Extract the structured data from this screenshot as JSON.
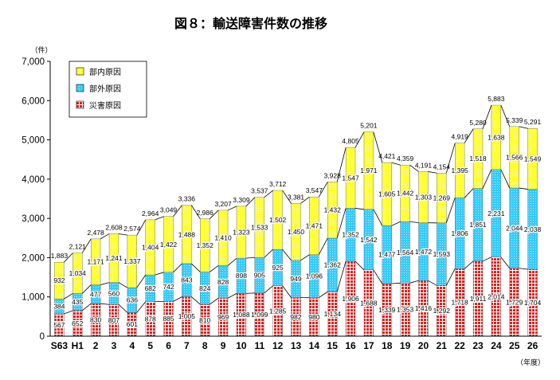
{
  "chart_data": {
    "type": "bar",
    "stacked": true,
    "title": "図８：輸送障害件数の推移",
    "ylabel": "（件）",
    "xlabel": "（年度）",
    "ylim": [
      0,
      7000
    ],
    "yticks": [
      "0",
      "1,000",
      "2,000",
      "3,000",
      "4,000",
      "5,000",
      "6,000",
      "7,000"
    ],
    "categories": [
      "S63",
      "H1",
      "2",
      "3",
      "4",
      "5",
      "6",
      "7",
      "8",
      "9",
      "10",
      "11",
      "12",
      "13",
      "14",
      "15",
      "16",
      "17",
      "18",
      "19",
      "20",
      "21",
      "22",
      "23",
      "24",
      "25",
      "26"
    ],
    "series": [
      {
        "name": "災害原因",
        "color": "#e0201c",
        "values": [
          567,
          652,
          830,
          807,
          601,
          878,
          885,
          1005,
          810,
          969,
          1088,
          1099,
          1285,
          982,
          980,
          1134,
          1906,
          1688,
          1339,
          1353,
          1416,
          1292,
          1718,
          1911,
          2014,
          1729,
          1704
        ]
      },
      {
        "name": "部外原因",
        "color": "#33ccff",
        "values": [
          384,
          435,
          477,
          560,
          636,
          682,
          742,
          843,
          824,
          828,
          898,
          905,
          925,
          949,
          1096,
          1362,
          1352,
          1542,
          1477,
          1564,
          1472,
          1593,
          1806,
          1851,
          2231,
          2044,
          2038
        ]
      },
      {
        "name": "部内原因",
        "color": "#ffff33",
        "values": [
          932,
          1034,
          1171,
          1241,
          1337,
          1404,
          1422,
          1488,
          1352,
          1410,
          1323,
          1533,
          1502,
          1450,
          1471,
          1432,
          1547,
          1971,
          1605,
          1442,
          1303,
          1269,
          1395,
          1518,
          1638,
          1566,
          1549
        ]
      }
    ],
    "totals": [
      1883,
      2121,
      2478,
      2608,
      2574,
      2964,
      3049,
      3336,
      2986,
      3207,
      3309,
      3537,
      3712,
      3381,
      3547,
      3928,
      4805,
      5201,
      4421,
      4359,
      4191,
      4154,
      4919,
      5280,
      5883,
      5339,
      5291
    ],
    "legend": {
      "position": "top-left",
      "order": [
        "部内原因",
        "部外原因",
        "災害原因"
      ]
    },
    "connector_lines": true,
    "grid": false
  }
}
